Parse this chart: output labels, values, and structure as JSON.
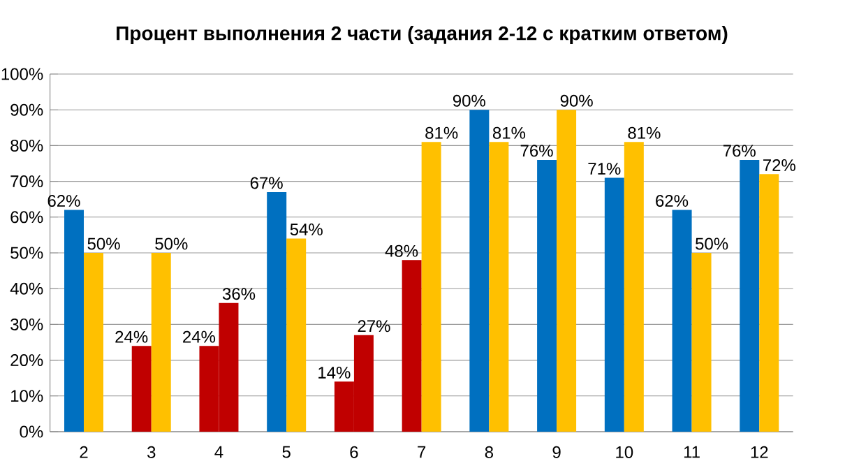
{
  "chart_data": {
    "type": "bar",
    "title": "Процент выполнения 2 части (задания 2-12 с кратким ответом)",
    "categories": [
      "2",
      "3",
      "4",
      "5",
      "6",
      "7",
      "8",
      "9",
      "10",
      "11",
      "12"
    ],
    "series": [
      {
        "colors": [
          "#0070c0",
          "#c00000",
          "#c00000",
          "#0070c0",
          "#c00000",
          "#c00000",
          "#0070c0",
          "#0070c0",
          "#0070c0",
          "#0070c0",
          "#0070c0"
        ],
        "values": [
          62,
          24,
          24,
          67,
          14,
          48,
          90,
          76,
          71,
          62,
          76
        ],
        "value_labels": [
          "62%",
          "24%",
          "24%",
          "67%",
          "14%",
          "48%",
          "90%",
          "76%",
          "71%",
          "62%",
          "76%"
        ]
      },
      {
        "colors": [
          "#ffc000",
          "#ffc000",
          "#c00000",
          "#ffc000",
          "#c00000",
          "#ffc000",
          "#ffc000",
          "#ffc000",
          "#ffc000",
          "#ffc000",
          "#ffc000"
        ],
        "values": [
          50,
          50,
          36,
          54,
          27,
          81,
          81,
          90,
          81,
          50,
          72
        ],
        "value_labels": [
          "50%",
          "50%",
          "36%",
          "54%",
          "27%",
          "81%",
          "81%",
          "90%",
          "81%",
          "50%",
          "72%"
        ]
      }
    ],
    "ylim": [
      0,
      100
    ],
    "yticks": [
      {
        "value": 0,
        "label": "0%"
      },
      {
        "value": 10,
        "label": "10%"
      },
      {
        "value": 20,
        "label": "20%"
      },
      {
        "value": 30,
        "label": "30%"
      },
      {
        "value": 40,
        "label": "40%"
      },
      {
        "value": 50,
        "label": "50%"
      },
      {
        "value": 60,
        "label": "60%"
      },
      {
        "value": 70,
        "label": "70%"
      },
      {
        "value": 80,
        "label": "80%"
      },
      {
        "value": 90,
        "label": "90%"
      },
      {
        "value": 100,
        "label": "100%"
      }
    ],
    "grid": "y"
  }
}
